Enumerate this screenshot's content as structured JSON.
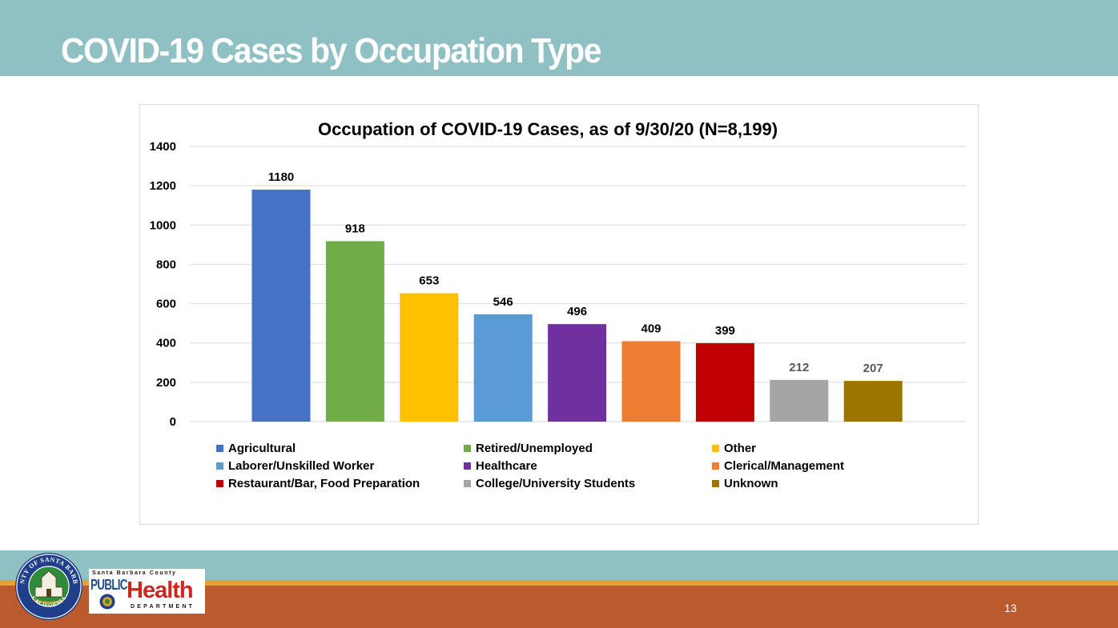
{
  "slide": {
    "title": "COVID-19 Cases by Occupation Type",
    "page_number": "13"
  },
  "logos": {
    "seal_top_text": "COUNTY OF SANTA BARBARA",
    "seal_bottom_text": "CALIFORNIA",
    "county_text": "Santa Barbara County",
    "public_text": "PUBLIC",
    "health_text": "Health",
    "department_text": "DEPARTMENT"
  },
  "colors": {
    "band_teal": "#8fc0c4",
    "band_gold": "#e8a033",
    "band_rust": "#bb5a2d",
    "gridline": "#d9d9d9"
  },
  "chart_data": {
    "type": "bar",
    "title": "Occupation of COVID-19 Cases, as of 9/30/20 (N=8,199)",
    "xlabel": "",
    "ylabel": "",
    "ylim": [
      0,
      1400
    ],
    "yticks": [
      0,
      200,
      400,
      600,
      800,
      1000,
      1200,
      1400
    ],
    "grid": true,
    "legend_position": "bottom",
    "categories": [
      "Agricultural",
      "Retired/Unemployed",
      "Other",
      "Laborer/Unskilled Worker",
      "Healthcare",
      "Clerical/Management",
      "Restaurant/Bar, Food Preparation",
      "College/University Students",
      "Unknown"
    ],
    "values": [
      1180,
      918,
      653,
      546,
      496,
      409,
      399,
      212,
      207
    ],
    "bar_colors": [
      "#4472c4",
      "#70ad47",
      "#ffc000",
      "#5b9bd5",
      "#7030a0",
      "#ed7d31",
      "#c00000",
      "#a5a5a5",
      "#9e7400"
    ],
    "label_colors": [
      "#000000",
      "#000000",
      "#000000",
      "#000000",
      "#000000",
      "#000000",
      "#000000",
      "#595959",
      "#595959"
    ]
  }
}
